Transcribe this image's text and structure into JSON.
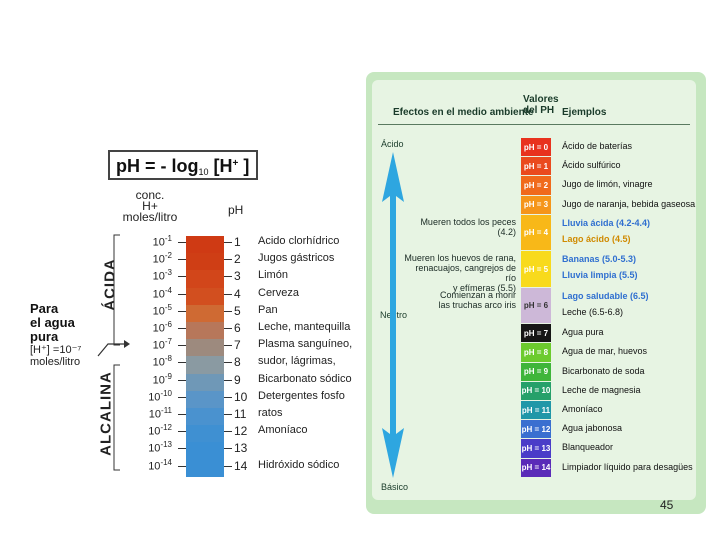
{
  "left": {
    "formula": {
      "main": "pH = - log",
      "sub": "10",
      "bracket": "[H",
      "sup": "+",
      "close": "]"
    },
    "header_conc": [
      "conc.",
      "H+",
      "moles/litro"
    ],
    "header_ph": "pH",
    "acid_label": "ÁCIDA",
    "alkaline_label": "ALCALINA",
    "water_label": [
      "Para",
      "el agua",
      "pura"
    ],
    "water_conc": [
      "[H⁺] =10⁻⁷",
      "moles/litro"
    ],
    "rows": [
      {
        "exp": "-1",
        "ph": "1",
        "name": "Acido clorhídrico"
      },
      {
        "exp": "-2",
        "ph": "2",
        "name": "Jugos gástricos"
      },
      {
        "exp": "-3",
        "ph": "3",
        "name": "Limón"
      },
      {
        "exp": "-4",
        "ph": "4",
        "name": "Cerveza"
      },
      {
        "exp": "-5",
        "ph": "5",
        "name": "Pan"
      },
      {
        "exp": "-6",
        "ph": "6",
        "name": "Leche, mantequilla"
      },
      {
        "exp": "-7",
        "ph": "7",
        "name": "Plasma sanguíneo,"
      },
      {
        "exp": "-8",
        "ph": "8",
        "name": "sudor, lágrimas,"
      },
      {
        "exp": "-9",
        "ph": "9",
        "name": "Bicarbonato sódico"
      },
      {
        "exp": "-10",
        "ph": "10",
        "name": "Detergentes fosfo"
      },
      {
        "exp": "-11",
        "ph": "11",
        "name": "ratos"
      },
      {
        "exp": "-12",
        "ph": "12",
        "name": "Amoníaco"
      },
      {
        "exp": "-13",
        "ph": "13",
        "name": ""
      },
      {
        "exp": "-14",
        "ph": "14",
        "name": "Hidróxido sódico"
      }
    ],
    "bar_colors": [
      "#cf3a14",
      "#cf3e15",
      "#d2461a",
      "#d24f1f",
      "#cf6a33",
      "#b7775a",
      "#9d8a7e",
      "#8a9aa2",
      "#6f98b7",
      "#5a95c8",
      "#4a92cf",
      "#3f90d2",
      "#3a8fd4",
      "#3a8fd4"
    ]
  },
  "right": {
    "headers": {
      "effects": "Efectos en el medio ambiente",
      "values": [
        "Valores",
        "del PH"
      ],
      "examples": "Ejemplos"
    },
    "zones": {
      "acid": "Ácido",
      "neutral": "Neutro",
      "basic": "Básico"
    },
    "effects": [
      {
        "text": [
          "Mueren todos los peces (4.2)"
        ],
        "row": 4
      },
      {
        "text": [
          "Mueren los huevos de rana,",
          "renacuajos, cangrejos de río",
          "y efímeras (5.5)"
        ],
        "row": 5
      },
      {
        "text": [
          "Comienzan a morir",
          "las truchas arco iris"
        ],
        "row": 6
      }
    ],
    "rows": [
      {
        "ph": "pH = 0",
        "color": "#e8321e",
        "examples": [
          "Ácido de baterías"
        ],
        "hl": ""
      },
      {
        "ph": "pH = 1",
        "color": "#ea4a1e",
        "examples": [
          "Ácido sulfúrico"
        ],
        "hl": ""
      },
      {
        "ph": "pH = 2",
        "color": "#f06a1c",
        "examples": [
          "Jugo de limón, vinagre"
        ],
        "hl": ""
      },
      {
        "ph": "pH = 3",
        "color": "#f5951a",
        "examples": [
          "Jugo de naranja, bebida gaseosa"
        ],
        "hl": ""
      },
      {
        "ph": "pH = 4",
        "color": "#f8b818",
        "examples": [
          "Lluvia ácida (4.2-4.4)",
          "Lago ácido (4.5)"
        ],
        "hl": "hl2"
      },
      {
        "ph": "pH = 5",
        "color": "#f8da1c",
        "examples": [
          "Bananas (5.0-5.3)",
          "Lluvia limpia (5.5)"
        ],
        "hl": "hl"
      },
      {
        "ph": "pH = 6",
        "color": "#cdb8d8",
        "examples": [
          "Lago saludable (6.5)",
          "Leche (6.5-6.8)"
        ],
        "hl": "hl"
      },
      {
        "ph": "pH = 7",
        "color": "#161616",
        "examples": [
          "Agua pura"
        ],
        "hl": ""
      },
      {
        "ph": "pH = 8",
        "color": "#6ccb2e",
        "examples": [
          "Agua de mar, huevos"
        ],
        "hl": ""
      },
      {
        "ph": "pH = 9",
        "color": "#3fb53a",
        "examples": [
          "Bicarbonato de soda"
        ],
        "hl": ""
      },
      {
        "ph": "pH = 10",
        "color": "#26a06a",
        "examples": [
          "Leche de magnesia"
        ],
        "hl": ""
      },
      {
        "ph": "pH = 11",
        "color": "#2097a8",
        "examples": [
          "Amoníaco"
        ],
        "hl": ""
      },
      {
        "ph": "pH = 12",
        "color": "#3a6fd0",
        "examples": [
          "Agua jabonosa"
        ],
        "hl": ""
      },
      {
        "ph": "pH = 13",
        "color": "#4a3cc8",
        "examples": [
          "Blanqueador"
        ],
        "hl": ""
      },
      {
        "ph": "pH = 14",
        "color": "#5a2bb8",
        "examples": [
          "Limpiador líquido para desagües"
        ],
        "hl": ""
      }
    ],
    "arrow_color": "#2ea6e0"
  },
  "page_number": "45"
}
